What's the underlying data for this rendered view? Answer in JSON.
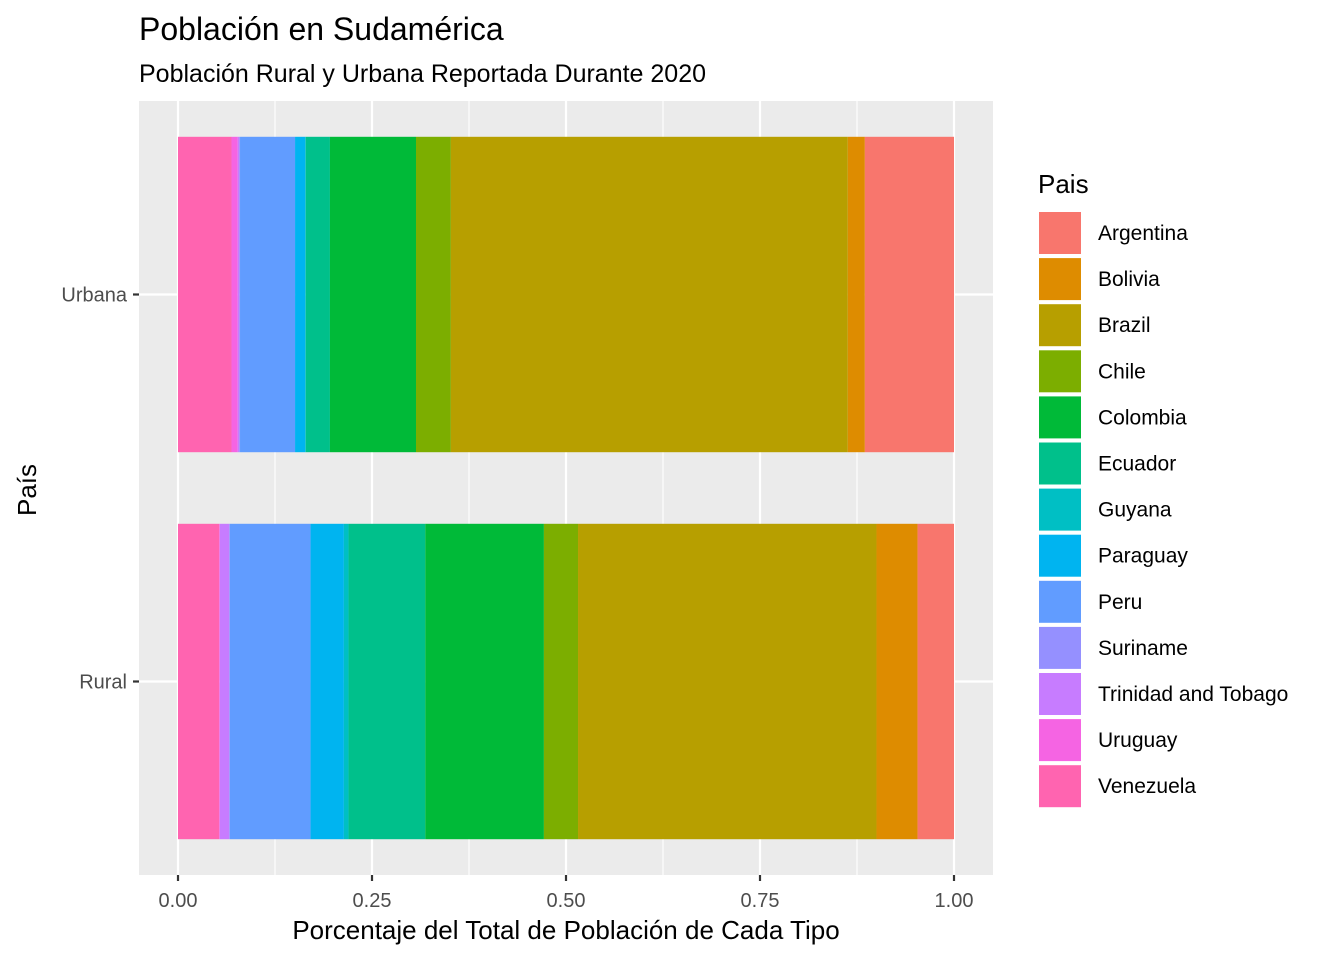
{
  "chart_data": {
    "type": "bar",
    "orientation": "horizontal",
    "stacked": "fill",
    "title": "Población en Sudamérica",
    "subtitle": "Población Rural y Urbana Reportada Durante 2020",
    "xlabel": "Porcentaje del Total de Población de Cada Tipo",
    "ylabel": "País",
    "xlim": [
      0,
      1
    ],
    "x_ticks": [
      "0.00",
      "0.25",
      "0.50",
      "0.75",
      "1.00"
    ],
    "categories": [
      "Urbana",
      "Rural"
    ],
    "grid": true,
    "legend": {
      "title": "Pais",
      "position": "right"
    },
    "series": [
      {
        "name": "Argentina",
        "color": "#F8766D",
        "values": [
          0.115,
          0.047
        ]
      },
      {
        "name": "Bolivia",
        "color": "#DE8C00",
        "values": [
          0.022,
          0.053
        ]
      },
      {
        "name": "Brazil",
        "color": "#B79F00",
        "values": [
          0.512,
          0.385
        ]
      },
      {
        "name": "Chile",
        "color": "#7CAE00",
        "values": [
          0.045,
          0.044
        ]
      },
      {
        "name": "Colombia",
        "color": "#00BA38",
        "values": [
          0.111,
          0.153
        ]
      },
      {
        "name": "Ecuador",
        "color": "#00C08B",
        "values": [
          0.031,
          0.099
        ]
      },
      {
        "name": "Guyana",
        "color": "#00BFC4",
        "values": [
          0.001,
          0.006
        ]
      },
      {
        "name": "Paraguay",
        "color": "#00B4F0",
        "values": [
          0.013,
          0.043
        ]
      },
      {
        "name": "Peru",
        "color": "#619CFF",
        "values": [
          0.071,
          0.104
        ]
      },
      {
        "name": "Suriname",
        "color": "#9590FF",
        "values": [
          0.001,
          0.001
        ]
      },
      {
        "name": "Trinidad and Tobago",
        "color": "#C77CFF",
        "values": [
          0.002,
          0.012
        ]
      },
      {
        "name": "Uruguay",
        "color": "#F564E3",
        "values": [
          0.008,
          0.001
        ]
      },
      {
        "name": "Venezuela",
        "color": "#FF64B0",
        "values": [
          0.069,
          0.053
        ]
      }
    ]
  }
}
